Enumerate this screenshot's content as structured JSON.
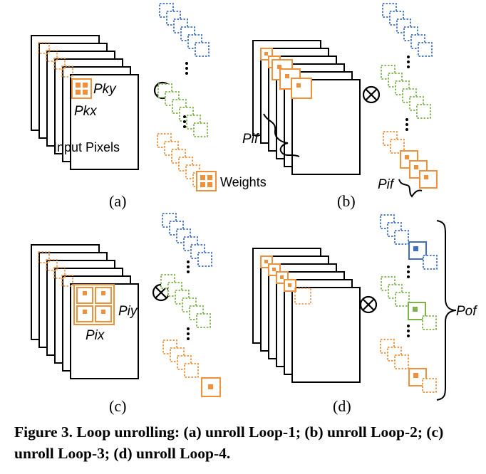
{
  "panels": [
    {
      "id": "a",
      "sublabel": "(a)",
      "texts": {
        "pky": "Pky",
        "pkx": "Pkx",
        "input": "Input Pixels",
        "weights": "Weights"
      }
    },
    {
      "id": "b",
      "sublabel": "(b)",
      "texts": {
        "pif_img": "Pif",
        "pif_w": "Pif"
      }
    },
    {
      "id": "c",
      "sublabel": "(c)",
      "texts": {
        "piy": "Piy",
        "pix": "Pix"
      }
    },
    {
      "id": "d",
      "sublabel": "(d)",
      "texts": {
        "pof": "Pof"
      }
    }
  ],
  "operator": "⊗",
  "caption": "Figure 3. Loop unrolling: (a) unroll Loop-1; (b) unroll Loop-2; (c) unroll Loop-3; (d) unroll Loop-4.",
  "colors": {
    "orange": "#F0913A",
    "green": "#7FB24A",
    "blue": "#3F6FC4",
    "black": "#000000"
  }
}
